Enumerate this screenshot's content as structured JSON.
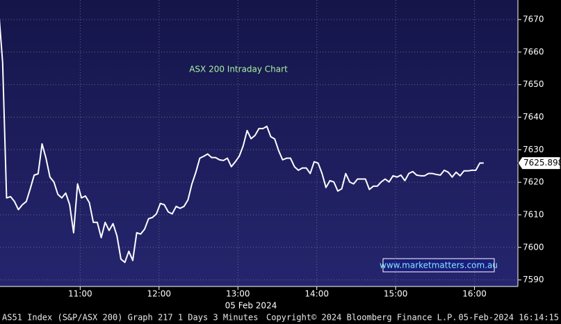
{
  "chart_data": {
    "type": "line",
    "title": "ASX 200 Intraday Chart",
    "watermark": "www.marketmatters.com.au",
    "date_label": "05 Feb 2024",
    "footer_left": "AS51 Index (S&P/ASX 200) Graph 217 1 Days 3 Minutes",
    "footer_center": "Copyright© 2024 Bloomberg Finance L.P.",
    "footer_right": "05-Feb-2024 16:14:15",
    "x": [
      "09:58",
      "10:01",
      "10:04",
      "10:07",
      "10:10",
      "10:13",
      "10:16",
      "10:19",
      "10:22",
      "10:25",
      "10:28",
      "10:31",
      "10:34",
      "10:37",
      "10:40",
      "10:43",
      "10:46",
      "10:49",
      "10:52",
      "10:55",
      "10:58",
      "11:01",
      "11:04",
      "11:07",
      "11:10",
      "11:13",
      "11:16",
      "11:19",
      "11:22",
      "11:25",
      "11:28",
      "11:31",
      "11:34",
      "11:37",
      "11:40",
      "11:43",
      "11:46",
      "11:49",
      "11:52",
      "11:55",
      "11:58",
      "12:01",
      "12:04",
      "12:07",
      "12:10",
      "12:13",
      "12:16",
      "12:19",
      "12:22",
      "12:25",
      "12:28",
      "12:31",
      "12:34",
      "12:37",
      "12:40",
      "12:43",
      "12:46",
      "12:49",
      "12:52",
      "12:55",
      "12:58",
      "13:01",
      "13:04",
      "13:07",
      "13:10",
      "13:13",
      "13:16",
      "13:19",
      "13:22",
      "13:25",
      "13:28",
      "13:31",
      "13:34",
      "13:37",
      "13:40",
      "13:43",
      "13:46",
      "13:49",
      "13:52",
      "13:55",
      "13:58",
      "14:01",
      "14:04",
      "14:07",
      "14:10",
      "14:13",
      "14:16",
      "14:19",
      "14:22",
      "14:25",
      "14:28",
      "14:31",
      "14:34",
      "14:37",
      "14:40",
      "14:43",
      "14:46",
      "14:49",
      "14:52",
      "14:55",
      "14:58",
      "15:01",
      "15:04",
      "15:07",
      "15:10",
      "15:13",
      "15:16",
      "15:19",
      "15:22",
      "15:25",
      "15:28",
      "15:31",
      "15:34",
      "15:37",
      "15:40",
      "15:43",
      "15:46",
      "15:49",
      "15:52",
      "15:55",
      "15:58",
      "16:01",
      "16:04",
      "16:07"
    ],
    "series": [
      {
        "name": "S&P/ASX 200",
        "color": "#ffffff",
        "values": [
          7672.8,
          7656.8,
          7615.2,
          7615.6,
          7614.1,
          7611.6,
          7613.1,
          7614.1,
          7618,
          7622.2,
          7622.6,
          7631.8,
          7627.4,
          7621.6,
          7620.1,
          7616.3,
          7615.2,
          7616.7,
          7613.1,
          7604.5,
          7619.5,
          7615.2,
          7615.8,
          7613.7,
          7607.7,
          7607.7,
          7603,
          7607.7,
          7605.2,
          7607.3,
          7603.5,
          7596.4,
          7595.4,
          7598.8,
          7596,
          7604.5,
          7604.1,
          7605.6,
          7608.8,
          7609.2,
          7610.3,
          7613.5,
          7613.1,
          7610.9,
          7610.3,
          7612.6,
          7612,
          7612.6,
          7614.6,
          7619.5,
          7623.1,
          7627.4,
          7628,
          7628.7,
          7627.6,
          7627.6,
          7626.9,
          7626.7,
          7627.4,
          7624.8,
          7626.3,
          7628,
          7631.2,
          7635.9,
          7633.4,
          7634.4,
          7636.5,
          7636.5,
          7637.2,
          7634,
          7633.3,
          7629.7,
          7626.9,
          7627.4,
          7627.4,
          7624.8,
          7623.7,
          7624.4,
          7624.4,
          7622.7,
          7626.3,
          7625.9,
          7622.7,
          7618.4,
          7620.5,
          7620.1,
          7617.3,
          7618,
          7622.7,
          7620.1,
          7619.5,
          7621,
          7621,
          7621,
          7617.8,
          7618.8,
          7618.8,
          7620.1,
          7621,
          7620.1,
          7622,
          7621.6,
          7622.2,
          7620.5,
          7622.7,
          7623.3,
          7622.2,
          7622,
          7622,
          7622.7,
          7622.7,
          7622.4,
          7622.2,
          7623.7,
          7623.1,
          7621.6,
          7623.1,
          7622,
          7623.5,
          7623.5,
          7623.7,
          7623.7,
          7625.9,
          7625.9
        ]
      }
    ],
    "last_value": 7625.898,
    "xlim": [
      "09:59",
      "16:33"
    ],
    "xticks": [
      "11:00",
      "12:00",
      "13:00",
      "14:00",
      "15:00",
      "16:00"
    ],
    "ylim": [
      7588,
      7676
    ],
    "yticks": [
      7590,
      7600,
      7610,
      7620,
      7630,
      7640,
      7650,
      7660,
      7670
    ],
    "grid": true
  }
}
